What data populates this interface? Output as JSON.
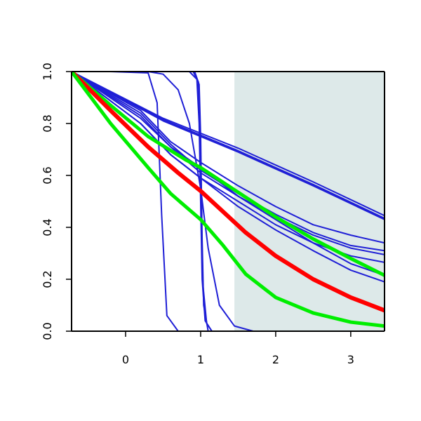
{
  "chart_data": {
    "type": "line",
    "title": "",
    "xlabel": "",
    "ylabel": "",
    "xlim": [
      -0.72,
      3.45
    ],
    "ylim": [
      0.0,
      1.0
    ],
    "x_ticks": [
      0,
      1,
      2,
      3
    ],
    "x_tick_labels": [
      "0",
      "1",
      "2",
      "3"
    ],
    "y_ticks": [
      0.0,
      0.2,
      0.4,
      0.6,
      0.8,
      1.0
    ],
    "y_tick_labels": [
      "0.0",
      "0.2",
      "0.4",
      "0.6",
      "0.8",
      "1.0"
    ],
    "shaded_region": {
      "x_from": 1.45,
      "x_to": 3.45,
      "color": "#dde9e9"
    },
    "grid": false,
    "legend": "none",
    "colors": {
      "blue": "#1f1fd6",
      "red": "#ff0000",
      "green": "#00ee00"
    },
    "series": [
      {
        "color": "blue",
        "x": [
          -0.72,
          0.5,
          1.5,
          2.5,
          3.45
        ],
        "y": [
          1.0,
          0.82,
          0.705,
          0.575,
          0.445
        ]
      },
      {
        "color": "blue",
        "x": [
          -0.72,
          0.5,
          1.5,
          2.5,
          3.45
        ],
        "y": [
          1.0,
          0.815,
          0.695,
          0.565,
          0.435
        ]
      },
      {
        "color": "blue",
        "x": [
          -0.72,
          0.5,
          1.5,
          2.5,
          3.45
        ],
        "y": [
          1.0,
          0.81,
          0.69,
          0.56,
          0.43
        ]
      },
      {
        "color": "blue",
        "x": [
          -0.72,
          0.2,
          0.6,
          1.0,
          1.5,
          2.0,
          2.5,
          3.0,
          3.45
        ],
        "y": [
          1.0,
          0.85,
          0.73,
          0.65,
          0.56,
          0.48,
          0.41,
          0.37,
          0.34
        ]
      },
      {
        "color": "blue",
        "x": [
          -0.72,
          0.2,
          0.6,
          1.0,
          1.5,
          2.0,
          2.5,
          3.0,
          3.45
        ],
        "y": [
          1.0,
          0.84,
          0.72,
          0.62,
          0.53,
          0.45,
          0.38,
          0.33,
          0.31
        ]
      },
      {
        "color": "blue",
        "x": [
          -0.72,
          0.2,
          0.6,
          1.0,
          1.5,
          2.0,
          2.5,
          3.0,
          3.45
        ],
        "y": [
          1.0,
          0.83,
          0.71,
          0.61,
          0.52,
          0.44,
          0.37,
          0.32,
          0.295
        ]
      },
      {
        "color": "blue",
        "x": [
          -0.72,
          0.2,
          0.6,
          1.0,
          1.5,
          2.0,
          2.5,
          3.0,
          3.45
        ],
        "y": [
          1.0,
          0.8,
          0.68,
          0.59,
          0.5,
          0.41,
          0.34,
          0.29,
          0.265
        ]
      },
      {
        "color": "blue",
        "x": [
          -0.72,
          0.2,
          0.6,
          1.0,
          1.5,
          2.0,
          2.5,
          3.0,
          3.45
        ],
        "y": [
          1.0,
          0.82,
          0.71,
          0.63,
          0.52,
          0.43,
          0.34,
          0.26,
          0.215
        ]
      },
      {
        "color": "blue",
        "x": [
          -0.72,
          0.2,
          0.6,
          1.0,
          1.5,
          2.0,
          2.5,
          3.0,
          3.45
        ],
        "y": [
          1.0,
          0.8,
          0.68,
          0.59,
          0.48,
          0.39,
          0.31,
          0.235,
          0.19
        ]
      },
      {
        "color": "blue",
        "x": [
          -0.72,
          -0.2,
          0.3,
          0.42,
          0.48,
          0.55,
          0.7,
          3.45
        ],
        "y": [
          1.0,
          1.0,
          0.995,
          0.88,
          0.45,
          0.06,
          0.0,
          0.0
        ]
      },
      {
        "color": "blue",
        "x": [
          -0.72,
          0.3,
          0.5,
          0.7,
          0.85,
          1.0,
          1.1,
          1.25,
          1.45,
          1.7,
          3.45
        ],
        "y": [
          1.0,
          1.0,
          0.99,
          0.93,
          0.8,
          0.55,
          0.32,
          0.1,
          0.02,
          0.0,
          0.0
        ]
      },
      {
        "color": "blue",
        "x": [
          -0.72,
          0.85,
          0.95,
          0.98,
          1.0,
          1.02,
          1.06,
          1.15,
          3.45
        ],
        "y": [
          1.0,
          1.0,
          0.97,
          0.8,
          0.5,
          0.2,
          0.04,
          0.0,
          0.0
        ]
      },
      {
        "color": "blue",
        "x": [
          -0.72,
          0.9,
          0.97,
          0.99,
          1.01,
          1.03,
          1.08,
          1.15,
          3.45
        ],
        "y": [
          1.0,
          1.0,
          0.96,
          0.8,
          0.45,
          0.18,
          0.03,
          0.0,
          0.0
        ]
      },
      {
        "color": "blue",
        "x": [
          -0.72,
          0.92,
          0.98,
          1.0,
          1.02,
          1.04,
          1.1,
          3.45
        ],
        "y": [
          1.0,
          1.0,
          0.95,
          0.75,
          0.35,
          0.1,
          0.0,
          0.0
        ]
      },
      {
        "color": "green",
        "width": 5,
        "x": [
          -0.72,
          -0.2,
          0.3,
          0.8,
          1.0,
          1.5,
          2.0,
          2.5,
          3.0,
          3.45
        ],
        "y": [
          1.0,
          0.87,
          0.75,
          0.66,
          0.63,
          0.535,
          0.44,
          0.355,
          0.28,
          0.215
        ]
      },
      {
        "color": "red",
        "width": 6,
        "x": [
          -0.72,
          -0.2,
          0.3,
          0.7,
          1.0,
          1.3,
          1.6,
          2.0,
          2.5,
          3.0,
          3.45
        ],
        "y": [
          1.0,
          0.85,
          0.71,
          0.61,
          0.54,
          0.46,
          0.38,
          0.29,
          0.2,
          0.13,
          0.08
        ]
      },
      {
        "color": "green",
        "width": 5,
        "x": [
          -0.72,
          -0.2,
          0.3,
          0.6,
          1.0,
          1.3,
          1.6,
          2.0,
          2.5,
          3.0,
          3.45
        ],
        "y": [
          1.0,
          0.8,
          0.63,
          0.53,
          0.43,
          0.33,
          0.22,
          0.13,
          0.07,
          0.035,
          0.02
        ]
      }
    ]
  }
}
